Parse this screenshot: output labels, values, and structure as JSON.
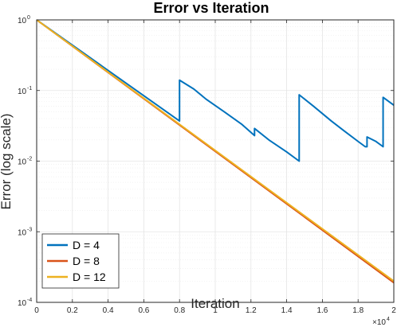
{
  "chart_data": {
    "type": "line",
    "title": "Error vs Iteration",
    "xlabel": "Iteration",
    "ylabel": "Error (log scale)",
    "x_exponent_label": "×10",
    "x_exponent_power": "4",
    "xlim": [
      0,
      20000
    ],
    "ylim": [
      0.0001,
      1
    ],
    "yscale": "log",
    "grid": true,
    "legend_position": "bottom-left",
    "x_ticks": [
      {
        "value": 0,
        "label": "0"
      },
      {
        "value": 2000,
        "label": "0.2"
      },
      {
        "value": 4000,
        "label": "0.4"
      },
      {
        "value": 6000,
        "label": "0.6"
      },
      {
        "value": 8000,
        "label": "0.8"
      },
      {
        "value": 10000,
        "label": "1"
      },
      {
        "value": 12000,
        "label": "1.2"
      },
      {
        "value": 14000,
        "label": "1.4"
      },
      {
        "value": 16000,
        "label": "1.6"
      },
      {
        "value": 18000,
        "label": "1.8"
      },
      {
        "value": 20000,
        "label": "2"
      }
    ],
    "y_ticks": [
      {
        "value": 1,
        "base": "10",
        "exp": "0"
      },
      {
        "value": 0.1,
        "base": "10",
        "exp": "-1"
      },
      {
        "value": 0.01,
        "base": "10",
        "exp": "-2"
      },
      {
        "value": 0.001,
        "base": "10",
        "exp": "-3"
      },
      {
        "value": 0.0001,
        "base": "10",
        "exp": "-4"
      }
    ],
    "series": [
      {
        "name": "D = 4",
        "color": "#0072BD",
        "x": [
          0,
          8000,
          8000,
          8800,
          9500,
          10500,
          11500,
          12200,
          12200,
          13000,
          14000,
          14700,
          14700,
          15500,
          16500,
          17200,
          18000,
          18400,
          18500,
          18500,
          19000,
          19400,
          19400,
          20000
        ],
        "y": [
          1,
          0.037,
          0.14,
          0.105,
          0.075,
          0.05,
          0.033,
          0.023,
          0.029,
          0.02,
          0.0135,
          0.01,
          0.087,
          0.06,
          0.037,
          0.027,
          0.019,
          0.016,
          0.016,
          0.022,
          0.019,
          0.016,
          0.08,
          0.062
        ]
      },
      {
        "name": "D = 8",
        "color": "#D95319",
        "x": [
          0,
          20000
        ],
        "y": [
          1,
          0.00019
        ]
      },
      {
        "name": "D = 12",
        "color": "#EDB120",
        "x": [
          0,
          20000
        ],
        "y": [
          1,
          0.0002
        ]
      }
    ]
  }
}
